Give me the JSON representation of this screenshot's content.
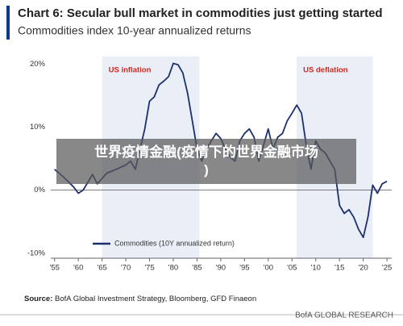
{
  "chart_data": {
    "type": "line",
    "title": "Chart 6: Secular bull market in commodities just getting started",
    "subtitle": "Commodities index 10-year annualized returns",
    "x": [
      1955,
      1957,
      1959,
      1960,
      1961,
      1963,
      1964,
      1966,
      1968,
      1970,
      1971,
      1972,
      1973,
      1974,
      1975,
      1976,
      1977,
      1978,
      1979,
      1980,
      1981,
      1982,
      1983,
      1984,
      1985,
      1986,
      1987,
      1988,
      1989,
      1990,
      1991,
      1992,
      1993,
      1994,
      1995,
      1996,
      1997,
      1998,
      1999,
      2000,
      2001,
      2002,
      2003,
      2004,
      2005,
      2006,
      2007,
      2008,
      2009,
      2010,
      2011,
      2012,
      2013,
      2014,
      2015,
      2016,
      2017,
      2018,
      2019,
      2020,
      2021,
      2022,
      2023,
      2024,
      2025
    ],
    "series": [
      {
        "name": "Commodities (10Y annualized return)",
        "color": "#1c2f6e",
        "values": [
          3.3,
          2,
          0.5,
          -0.5,
          0,
          2.5,
          1,
          2.7,
          3.3,
          4,
          4.6,
          3.3,
          6.5,
          9.7,
          14.1,
          14.8,
          16.7,
          17.3,
          18,
          20.1,
          19.9,
          18.6,
          15.4,
          11,
          6.5,
          4.6,
          6.5,
          7.8,
          9,
          8.2,
          6.5,
          5.2,
          4.6,
          7.8,
          9,
          9.7,
          8.4,
          4.6,
          7.1,
          9.7,
          6.5,
          8.4,
          9,
          11,
          12.2,
          13.5,
          12.2,
          7.1,
          3.3,
          7.8,
          6.5,
          5.9,
          4.6,
          3.3,
          -2.4,
          -3.7,
          -3.1,
          -4.3,
          -6.2,
          -7.5,
          -4.3,
          0.8,
          -0.5,
          1,
          1.4
        ]
      }
    ],
    "xlim": [
      1954.2,
      2026
    ],
    "ylim": [
      -10.8,
      21.2
    ],
    "xticks": [
      {
        "value": 1955,
        "label": "'55"
      },
      {
        "value": 1960,
        "label": "'60"
      },
      {
        "value": 1965,
        "label": "'65"
      },
      {
        "value": 1970,
        "label": "'70"
      },
      {
        "value": 1975,
        "label": "'75"
      },
      {
        "value": 1980,
        "label": "'80"
      },
      {
        "value": 1985,
        "label": "'85"
      },
      {
        "value": 1990,
        "label": "'90"
      },
      {
        "value": 1995,
        "label": "'95"
      },
      {
        "value": 2000,
        "label": "'00"
      },
      {
        "value": 2005,
        "label": "'05"
      },
      {
        "value": 2010,
        "label": "'10"
      },
      {
        "value": 2015,
        "label": "'15"
      },
      {
        "value": 2020,
        "label": "'20"
      },
      {
        "value": 2025,
        "label": "'25"
      }
    ],
    "yticks": [
      {
        "value": -10,
        "label": "-10%"
      },
      {
        "value": 0,
        "label": "0%"
      },
      {
        "value": 10,
        "label": "10%"
      },
      {
        "value": 20,
        "label": "20%"
      }
    ],
    "regions": [
      {
        "label": "US inflation",
        "range": [
          1965,
          1985.5
        ],
        "color": "#e9eef7"
      },
      {
        "label": "US deflation",
        "range": [
          2006,
          2022
        ],
        "color": "#e9eef7"
      }
    ],
    "source_label": "Source:",
    "source": "BofA Global Investment Strategy, Bloomberg, GFD Finaeon",
    "footer": "BofA GLOBAL RESEARCH",
    "overlay_lines": [
      "世界疫情金融(疫情下的世界金融市场",
      ")"
    ]
  }
}
